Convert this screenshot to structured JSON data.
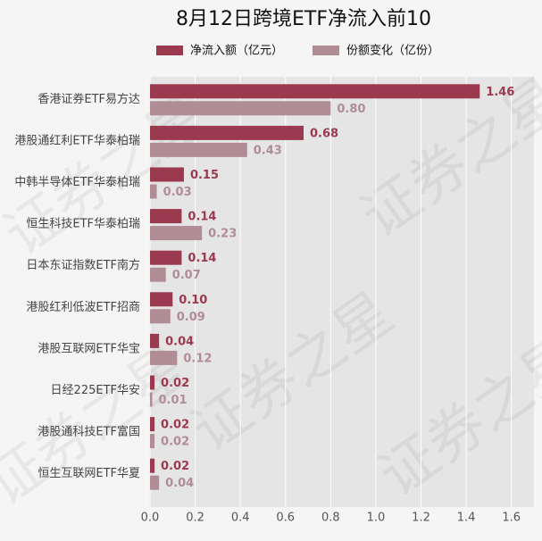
{
  "chart_data": {
    "type": "barh",
    "title": "8月12日跨境ETF净流入前10",
    "watermark": "证券之星",
    "categories": [
      "香港证券ETF易方达",
      "港股通红利ETF华泰柏瑞",
      "中韩半导体ETF华泰柏瑞",
      "恒生科技ETF华泰柏瑞",
      "日本东证指数ETF南方",
      "港股红利低波ETF招商",
      "港股互联网ETF华宝",
      "日经225ETF华安",
      "港股通科技ETF富国",
      "恒生互联网ETF华夏"
    ],
    "series": [
      {
        "name": "净流入额（亿元）",
        "color": "#9b3a4e",
        "values": [
          1.46,
          0.68,
          0.15,
          0.14,
          0.14,
          0.1,
          0.04,
          0.02,
          0.02,
          0.02
        ],
        "value_labels": [
          "1.46",
          "0.68",
          "0.15",
          "0.14",
          "0.14",
          "0.10",
          "0.04",
          "0.02",
          "0.02",
          "0.02"
        ]
      },
      {
        "name": "份额变化（亿份）",
        "color": "#b08c95",
        "values": [
          0.8,
          0.43,
          0.03,
          0.23,
          0.07,
          0.09,
          0.12,
          0.01,
          0.02,
          0.04
        ],
        "value_labels": [
          "0.80",
          "0.43",
          "0.03",
          "0.23",
          "0.07",
          "0.09",
          "0.12",
          "0.01",
          "0.02",
          "0.04"
        ]
      }
    ],
    "xlim": [
      0,
      1.7
    ],
    "xticks": [
      {
        "value": 0,
        "label": "0.0"
      },
      {
        "value": 0.2,
        "label": "0.2"
      },
      {
        "value": 0.4,
        "label": "0.4"
      },
      {
        "value": 0.6,
        "label": "0.6"
      },
      {
        "value": 0.8,
        "label": "0.8"
      },
      {
        "value": 1,
        "label": "1.0"
      },
      {
        "value": 1.2,
        "label": "1.2"
      },
      {
        "value": 1.4,
        "label": "1.4"
      },
      {
        "value": 1.6,
        "label": "1.6"
      }
    ],
    "grid": true
  }
}
